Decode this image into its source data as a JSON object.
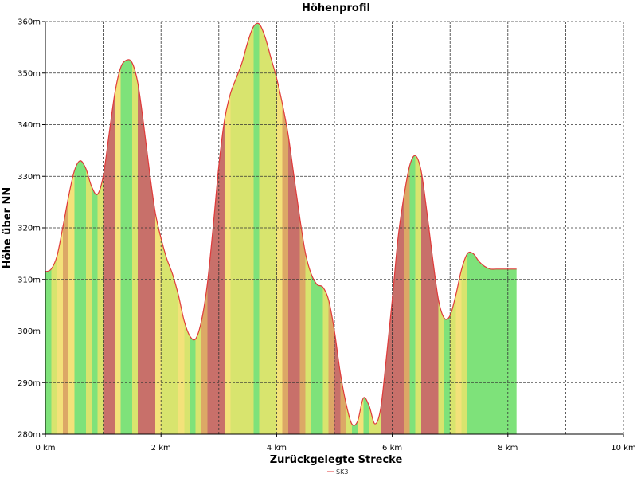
{
  "chart_data": {
    "type": "area",
    "title": "Höhenprofil",
    "xlabel": "Zurückgelegte Strecke",
    "ylabel": "Höhe über NN",
    "xlim": [
      0,
      10
    ],
    "ylim": [
      280,
      360
    ],
    "x_unit": "km",
    "y_unit": "m",
    "xticks": [
      0,
      2,
      4,
      6,
      8,
      10
    ],
    "xtick_labels": [
      "0 km",
      "2 km",
      "4 km",
      "6 km",
      "8 km",
      "10 km"
    ],
    "yticks": [
      280,
      290,
      300,
      310,
      320,
      330,
      340,
      350,
      360
    ],
    "ytick_labels": [
      "280m",
      "290m",
      "300m",
      "310m",
      "320m",
      "330m",
      "340m",
      "350m",
      "360m"
    ],
    "grid": true,
    "legend_position": "bottom-center",
    "series": [
      {
        "name": "SK3",
        "color": "#e03a3a",
        "x": [
          0,
          0.1,
          0.2,
          0.3,
          0.4,
          0.5,
          0.6,
          0.7,
          0.8,
          0.9,
          1.0,
          1.1,
          1.2,
          1.3,
          1.4,
          1.5,
          1.6,
          1.7,
          1.8,
          1.9,
          2.0,
          2.1,
          2.2,
          2.3,
          2.4,
          2.5,
          2.6,
          2.7,
          2.8,
          2.9,
          3.0,
          3.1,
          3.2,
          3.3,
          3.4,
          3.5,
          3.6,
          3.7,
          3.8,
          3.9,
          4.0,
          4.1,
          4.2,
          4.3,
          4.4,
          4.5,
          4.6,
          4.7,
          4.8,
          4.9,
          5.0,
          5.1,
          5.2,
          5.3,
          5.4,
          5.5,
          5.6,
          5.7,
          5.8,
          5.9,
          6.0,
          6.1,
          6.2,
          6.3,
          6.4,
          6.5,
          6.6,
          6.7,
          6.8,
          6.9,
          7.0,
          7.1,
          7.2,
          7.3,
          7.4,
          7.5,
          7.6,
          7.7,
          7.8,
          7.9,
          8.0,
          8.1,
          8.15
        ],
        "y": [
          311.5,
          312,
          314.5,
          320,
          326,
          331,
          333,
          331.5,
          328,
          326.5,
          330,
          338,
          346,
          351,
          352.5,
          352,
          348,
          340,
          331,
          323,
          318,
          314,
          311,
          307,
          302,
          299,
          298.5,
          302,
          309,
          320,
          332,
          341,
          346,
          349,
          352,
          356,
          359,
          359.5,
          357,
          353,
          349,
          344,
          338,
          330,
          322,
          315,
          311,
          309,
          308.5,
          306,
          300,
          292,
          286,
          282,
          282.5,
          287,
          285.5,
          282,
          285,
          295,
          306,
          318,
          326,
          332,
          334,
          331,
          323,
          314,
          306,
          302.5,
          303,
          307,
          312,
          315,
          315,
          313.5,
          312.5,
          312,
          312,
          312,
          312,
          312,
          312
        ],
        "fill_style": "green area with yellow/red stripes indicating slope steepness"
      }
    ]
  }
}
